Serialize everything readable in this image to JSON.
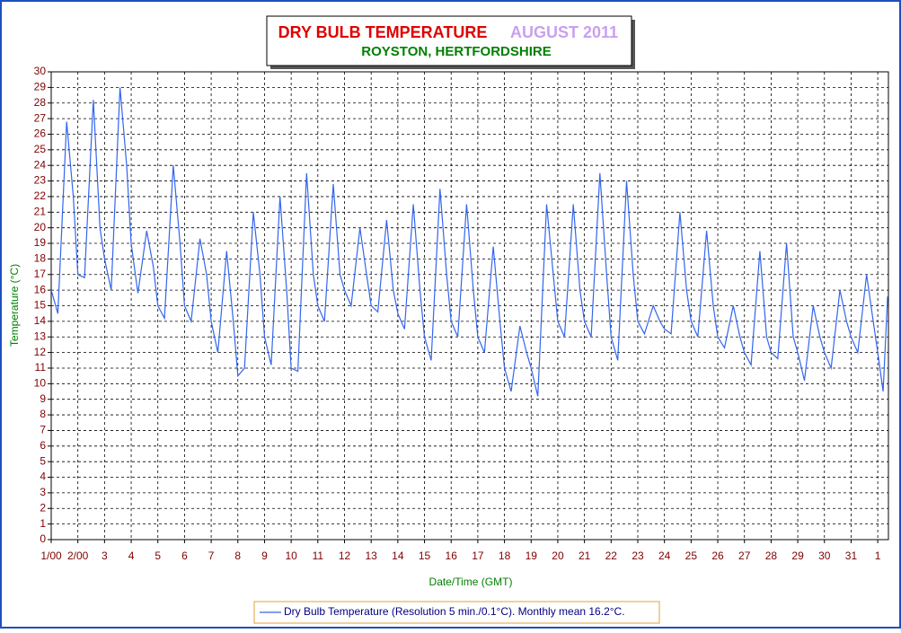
{
  "chart_data": {
    "type": "line",
    "title": "DRY BULB TEMPERATURE",
    "title_suffix": "AUGUST 2011",
    "subtitle": "ROYSTON, HERTFORDSHIRE",
    "x_label": "Date/Time (GMT)",
    "y_label": "Temperature (°C)",
    "grid": true,
    "xlim": [
      1,
      32.4
    ],
    "ylim": [
      0,
      30
    ],
    "yticks": [
      0,
      1,
      2,
      3,
      4,
      5,
      6,
      7,
      8,
      9,
      10,
      11,
      12,
      13,
      14,
      15,
      16,
      17,
      18,
      19,
      20,
      21,
      22,
      23,
      24,
      25,
      26,
      27,
      28,
      29,
      30
    ],
    "xticks": [
      {
        "value": 1,
        "label": "1/00"
      },
      {
        "value": 2,
        "label": "2/00"
      },
      3,
      4,
      5,
      6,
      7,
      8,
      9,
      10,
      11,
      12,
      13,
      14,
      15,
      16,
      17,
      18,
      19,
      20,
      21,
      22,
      23,
      24,
      25,
      26,
      27,
      28,
      29,
      30,
      31,
      {
        "value": 32,
        "label": "1"
      }
    ],
    "x": [
      1,
      1.25,
      1.58,
      1.83,
      2,
      2.25,
      2.58,
      2.83,
      3,
      3.25,
      3.58,
      3.83,
      4,
      4.25,
      4.58,
      4.83,
      5,
      5.25,
      5.58,
      5.83,
      6,
      6.25,
      6.58,
      6.83,
      7,
      7.25,
      7.58,
      7.83,
      8,
      8.25,
      8.58,
      8.83,
      9,
      9.25,
      9.58,
      9.83,
      10,
      10.25,
      10.58,
      10.83,
      11,
      11.25,
      11.58,
      11.83,
      12,
      12.25,
      12.58,
      12.83,
      13,
      13.25,
      13.58,
      13.83,
      14,
      14.25,
      14.58,
      14.83,
      15,
      15.25,
      15.58,
      15.83,
      16,
      16.25,
      16.58,
      16.83,
      17,
      17.25,
      17.58,
      17.83,
      18,
      18.25,
      18.58,
      18.83,
      19,
      19.25,
      19.58,
      19.83,
      20,
      20.25,
      20.58,
      20.83,
      21,
      21.25,
      21.58,
      21.83,
      22,
      22.25,
      22.58,
      22.83,
      23,
      23.25,
      23.58,
      23.83,
      24,
      24.25,
      24.58,
      24.83,
      25,
      25.25,
      25.58,
      25.83,
      26,
      26.25,
      26.58,
      26.83,
      27,
      27.25,
      27.58,
      27.83,
      28,
      28.25,
      28.58,
      28.83,
      29,
      29.25,
      29.58,
      29.83,
      30,
      30.25,
      30.58,
      30.83,
      31,
      31.25,
      31.58,
      31.83,
      32,
      32.2,
      32.37
    ],
    "series": [
      {
        "name": "Dry Bulb Temperature (Resolution 5 min./0.1°C). Monthly mean 16.2°C.",
        "color": "#3366ee",
        "values": [
          16,
          14.5,
          26.8,
          22,
          17,
          16.8,
          28.2,
          20,
          18,
          16,
          29,
          24,
          19,
          15.8,
          19.8,
          17.5,
          15,
          14.2,
          24,
          19,
          15,
          14,
          19.3,
          17,
          14,
          12,
          18.5,
          14,
          10.5,
          11,
          21,
          17,
          13,
          11.2,
          22,
          16,
          11,
          10.8,
          23.5,
          17,
          15,
          14,
          22.8,
          17,
          16,
          15,
          20,
          17,
          15,
          14.6,
          20.5,
          16,
          14.5,
          13.5,
          21.5,
          16,
          13,
          11.5,
          22.5,
          17,
          14,
          13,
          21.5,
          16,
          13,
          12,
          18.8,
          14,
          11,
          9.5,
          13.7,
          12,
          11,
          9.2,
          21.5,
          17,
          14,
          13,
          21.5,
          16,
          14,
          13,
          23.5,
          17,
          13,
          11.5,
          23,
          17,
          14,
          13.2,
          15,
          14,
          13.5,
          13.2,
          21,
          16,
          14,
          13,
          19.8,
          15,
          13,
          12.3,
          15,
          13,
          12,
          11.2,
          18.5,
          13,
          12,
          11.6,
          19,
          13,
          12,
          10.2,
          15,
          13,
          12,
          11,
          16,
          14,
          13,
          12,
          17,
          14,
          12,
          9.5,
          15.6
        ]
      }
    ]
  }
}
